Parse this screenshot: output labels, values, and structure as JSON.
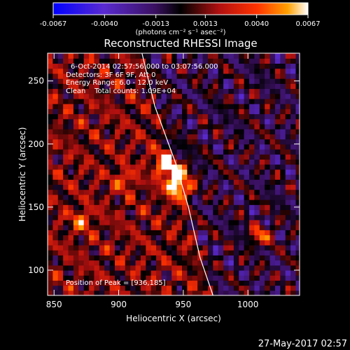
{
  "chart_data": {
    "type": "heatmap",
    "title": "Reconstructed RHESSI Image",
    "xlabel": "Heliocentric X (arcsec)",
    "ylabel": "Heliocentric Y (arcsec)",
    "xlim": [
      845,
      1040
    ],
    "ylim": [
      80,
      272
    ],
    "xticks": [
      850,
      900,
      950,
      1000
    ],
    "yticks": [
      100,
      150,
      200,
      250
    ],
    "colorbar": {
      "ticks": [
        "-0.0067",
        "-0.0040",
        "-0.0013",
        "0.0013",
        "0.0040",
        "0.0067"
      ],
      "range": [
        -0.0067,
        0.0067
      ],
      "unit": "(photons cm⁻² s⁻¹ asec⁻²)",
      "colors": [
        "#0000ff",
        "#5a2bd0",
        "#3a1060",
        "#000000",
        "#b01010",
        "#ff3300",
        "#ffa000",
        "#ffffff"
      ]
    },
    "annotations": [
      "6-Oct-2014 02:57:56.000 to 03:07:56.000",
      "Detectors: 3F 6F 9F, Att 0",
      "Energy Range: 6.0 - 12.0 keV",
      "Clean    Total counts: 1.09E+04",
      "Position of Peak = [936,185]"
    ],
    "peak": {
      "x": 936,
      "y": 185,
      "value": 0.0067
    },
    "sources": [
      {
        "x": 936,
        "y": 185,
        "value": 0.0067
      },
      {
        "x": 948,
        "y": 178,
        "value": 0.005
      },
      {
        "x": 942,
        "y": 168,
        "value": 0.0045
      },
      {
        "x": 951,
        "y": 164,
        "value": 0.0048
      },
      {
        "x": 1010,
        "y": 128,
        "value": 0.0045
      },
      {
        "x": 872,
        "y": 140,
        "value": 0.0035
      },
      {
        "x": 905,
        "y": 172,
        "value": 0.003
      }
    ],
    "limb": [
      [
        918,
        272
      ],
      [
        928,
        230
      ],
      [
        944,
        185
      ],
      [
        954,
        150
      ],
      [
        963,
        110
      ],
      [
        973,
        80
      ]
    ]
  },
  "footer_date": "27-May-2017 02:57"
}
